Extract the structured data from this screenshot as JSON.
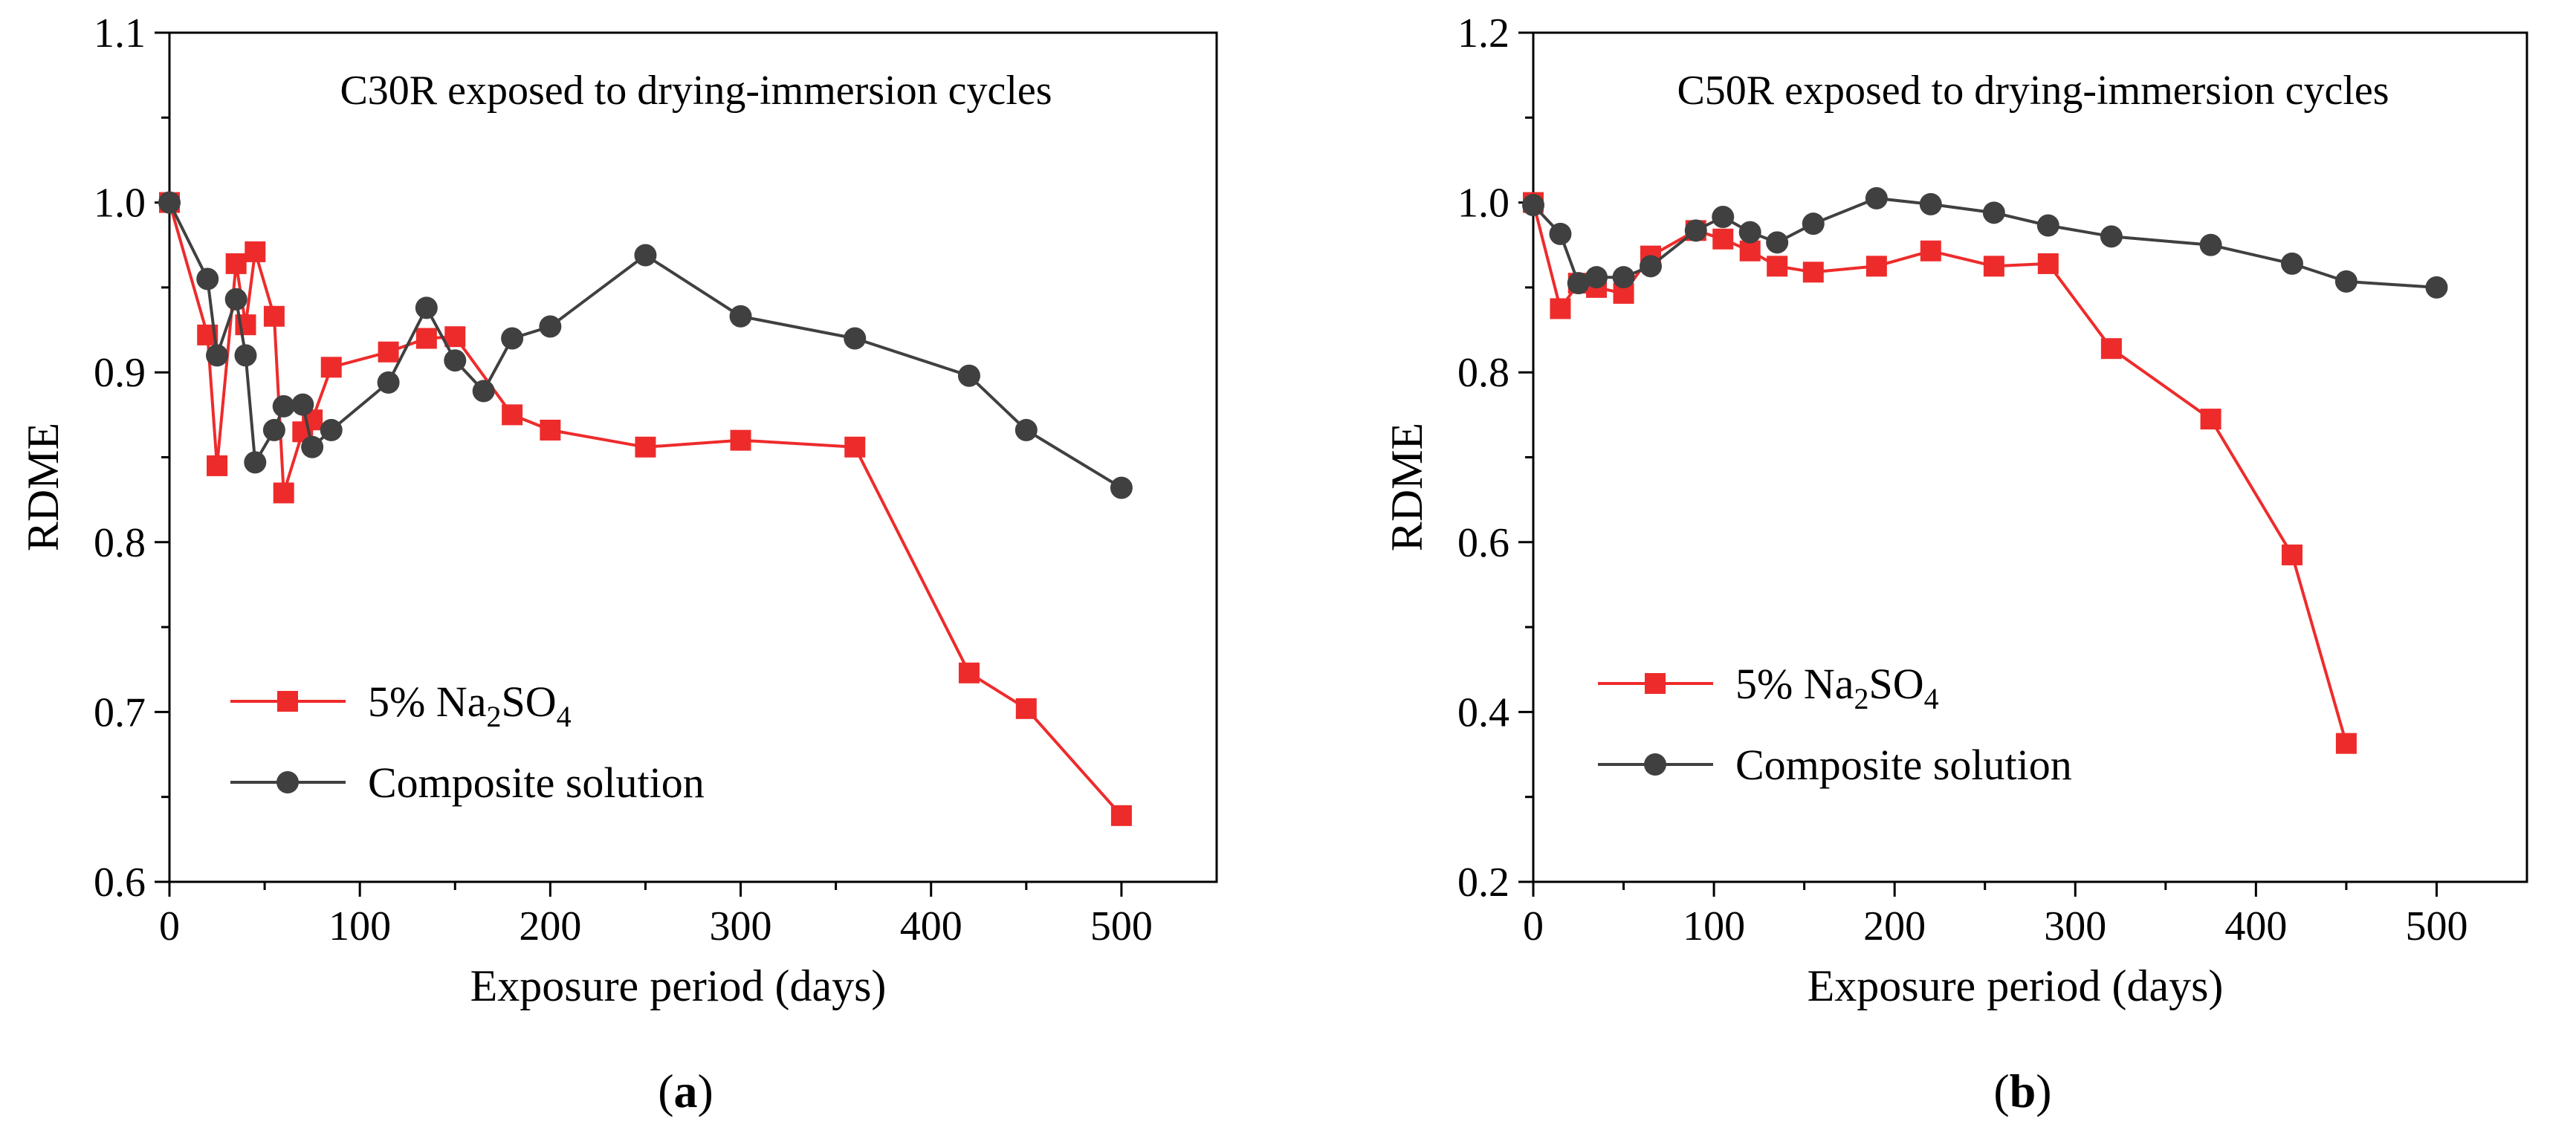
{
  "chart_data": [
    {
      "type": "line",
      "title": "C30R exposed to drying-immersion cycles",
      "xlabel": "Exposure period (days)",
      "ylabel": "RDME",
      "xlim": [
        0,
        550
      ],
      "ylim": [
        0.6,
        1.1
      ],
      "xticks": [
        "0",
        "100",
        "200",
        "300",
        "400",
        "500"
      ],
      "yticks": [
        "0.6",
        "0.7",
        "0.8",
        "0.9",
        "1.0",
        "1.1"
      ],
      "caption_letter": "a",
      "legend_position": "lower-left",
      "series": [
        {
          "name": "5% Na2SO4",
          "legend_main": "5% Na",
          "legend_sub1": "2",
          "legend_mid": "SO",
          "legend_sub2": "4",
          "color": "#ee2b2b",
          "marker": "square",
          "x": [
            0,
            20,
            25,
            35,
            40,
            45,
            55,
            60,
            70,
            75,
            85,
            115,
            135,
            150,
            180,
            200,
            250,
            300,
            360,
            420,
            450,
            500
          ],
          "y": [
            1.0,
            0.922,
            0.845,
            0.964,
            0.928,
            0.971,
            0.933,
            0.829,
            0.865,
            0.872,
            0.903,
            0.912,
            0.92,
            0.921,
            0.875,
            0.866,
            0.856,
            0.86,
            0.856,
            0.723,
            0.702,
            0.639
          ]
        },
        {
          "name": "Composite solution",
          "legend_main": "Composite solution",
          "color": "#404040",
          "marker": "circle",
          "x": [
            0,
            20,
            25,
            35,
            40,
            45,
            55,
            60,
            70,
            75,
            85,
            115,
            135,
            150,
            165,
            180,
            200,
            250,
            300,
            360,
            420,
            450,
            500
          ],
          "y": [
            1.0,
            0.955,
            0.91,
            0.943,
            0.91,
            0.847,
            0.866,
            0.88,
            0.881,
            0.856,
            0.866,
            0.894,
            0.938,
            0.907,
            0.889,
            0.92,
            0.927,
            0.969,
            0.933,
            0.92,
            0.898,
            0.866,
            0.832
          ]
        }
      ]
    },
    {
      "type": "line",
      "title": "C50R exposed to drying-immersion cycles",
      "xlabel": "Exposure period (days)",
      "ylabel": "RDME",
      "xlim": [
        0,
        550
      ],
      "ylim": [
        0.2,
        1.2
      ],
      "xticks": [
        "0",
        "100",
        "200",
        "300",
        "400",
        "500"
      ],
      "yticks": [
        "0.2",
        "0.4",
        "0.6",
        "0.8",
        "1.0",
        "1.2"
      ],
      "caption_letter": "b",
      "legend_position": "lower-left",
      "series": [
        {
          "name": "5% Na2SO4",
          "legend_main": "5% Na",
          "legend_sub1": "2",
          "legend_mid": "SO",
          "legend_sub2": "4",
          "color": "#ee2b2b",
          "marker": "square",
          "x": [
            0,
            15,
            25,
            35,
            50,
            65,
            90,
            105,
            120,
            135,
            155,
            190,
            220,
            255,
            285,
            320,
            375,
            420,
            450
          ],
          "y": [
            1.0,
            0.875,
            0.905,
            0.9,
            0.893,
            0.937,
            0.967,
            0.957,
            0.943,
            0.925,
            0.918,
            0.925,
            0.943,
            0.925,
            0.928,
            0.828,
            0.745,
            0.585,
            0.363
          ]
        },
        {
          "name": "Composite solution",
          "legend_main": "Composite solution",
          "color": "#404040",
          "marker": "circle",
          "x": [
            0,
            15,
            25,
            35,
            50,
            65,
            90,
            105,
            120,
            135,
            155,
            190,
            220,
            255,
            285,
            320,
            375,
            420,
            450,
            500
          ],
          "y": [
            0.997,
            0.963,
            0.905,
            0.912,
            0.912,
            0.925,
            0.967,
            0.983,
            0.965,
            0.953,
            0.975,
            1.005,
            0.998,
            0.988,
            0.973,
            0.96,
            0.95,
            0.928,
            0.907,
            0.9
          ]
        }
      ]
    }
  ]
}
